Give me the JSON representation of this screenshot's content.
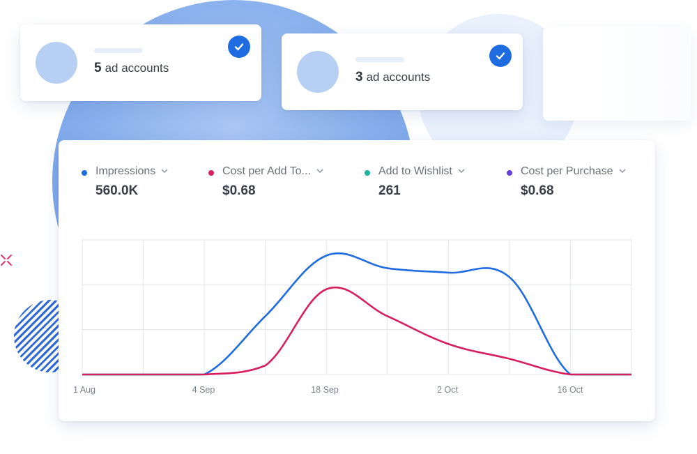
{
  "accounts": [
    {
      "number": "5",
      "label": "ad accounts"
    },
    {
      "number": "3",
      "label": "ad accounts"
    }
  ],
  "metrics": [
    {
      "label": "Impressions",
      "value": "560.0K",
      "color": "#1f6be0"
    },
    {
      "label": "Cost per Add To...",
      "value": "$0.68",
      "color": "#d81e5b"
    },
    {
      "label": "Add to Wishlist",
      "value": "261",
      "color": "#1ab3a2"
    },
    {
      "label": "Cost per Purchase",
      "value": "$0.68",
      "color": "#6a3fe0"
    }
  ],
  "icons": {
    "check": "check-circle-icon",
    "chevron": "chevron-down-icon",
    "accent": "x-icon"
  },
  "chart_data": {
    "type": "line",
    "x_tick_labels": [
      "1 Aug",
      "4 Sep",
      "18 Sep",
      "2 Oct",
      "16 Oct"
    ],
    "grid": true,
    "series": [
      {
        "name": "Impressions",
        "color": "#1f6be0",
        "points": [
          [
            0,
            0
          ],
          [
            1,
            0
          ],
          [
            2,
            0
          ],
          [
            3,
            1.3
          ],
          [
            4,
            2.65
          ],
          [
            5,
            2.37
          ],
          [
            6,
            2.27
          ],
          [
            7,
            2.17
          ],
          [
            8,
            0
          ],
          [
            9,
            0
          ]
        ]
      },
      {
        "name": "Cost per Add To...",
        "color": "#d81e5b",
        "points": [
          [
            0,
            0
          ],
          [
            1,
            0
          ],
          [
            2,
            0
          ],
          [
            3,
            0.2
          ],
          [
            4,
            1.9
          ],
          [
            5,
            1.3
          ],
          [
            6,
            0.68
          ],
          [
            7,
            0.35
          ],
          [
            8,
            0
          ],
          [
            9,
            0
          ]
        ]
      }
    ],
    "ylim": [
      0,
      3
    ]
  }
}
